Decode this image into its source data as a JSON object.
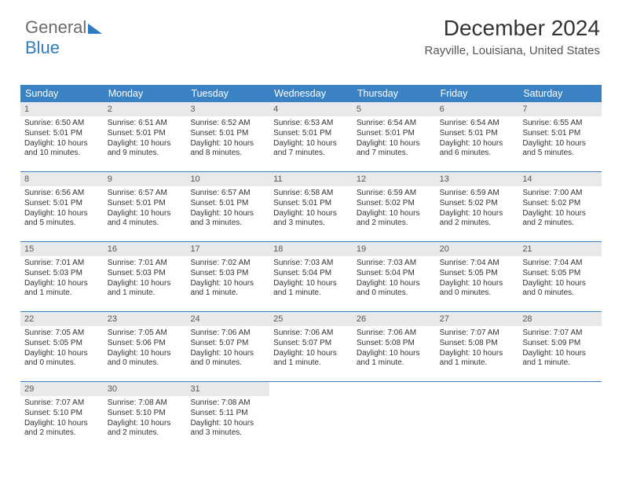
{
  "logo": {
    "part1": "General",
    "part2": "Blue"
  },
  "header": {
    "month_year": "December 2024",
    "location": "Rayville, Louisiana, United States"
  },
  "colors": {
    "header_bar": "#3a82c4",
    "week_divider": "#3a82c4",
    "daynum_bg": "#e7e9eb",
    "text": "#333333",
    "background": "#ffffff",
    "logo_accent": "#2f7bbf"
  },
  "day_names": [
    "Sunday",
    "Monday",
    "Tuesday",
    "Wednesday",
    "Thursday",
    "Friday",
    "Saturday"
  ],
  "weeks": [
    [
      {
        "n": "1",
        "sr": "6:50 AM",
        "ss": "5:01 PM",
        "dl": "10 hours and 10 minutes."
      },
      {
        "n": "2",
        "sr": "6:51 AM",
        "ss": "5:01 PM",
        "dl": "10 hours and 9 minutes."
      },
      {
        "n": "3",
        "sr": "6:52 AM",
        "ss": "5:01 PM",
        "dl": "10 hours and 8 minutes."
      },
      {
        "n": "4",
        "sr": "6:53 AM",
        "ss": "5:01 PM",
        "dl": "10 hours and 7 minutes."
      },
      {
        "n": "5",
        "sr": "6:54 AM",
        "ss": "5:01 PM",
        "dl": "10 hours and 7 minutes."
      },
      {
        "n": "6",
        "sr": "6:54 AM",
        "ss": "5:01 PM",
        "dl": "10 hours and 6 minutes."
      },
      {
        "n": "7",
        "sr": "6:55 AM",
        "ss": "5:01 PM",
        "dl": "10 hours and 5 minutes."
      }
    ],
    [
      {
        "n": "8",
        "sr": "6:56 AM",
        "ss": "5:01 PM",
        "dl": "10 hours and 5 minutes."
      },
      {
        "n": "9",
        "sr": "6:57 AM",
        "ss": "5:01 PM",
        "dl": "10 hours and 4 minutes."
      },
      {
        "n": "10",
        "sr": "6:57 AM",
        "ss": "5:01 PM",
        "dl": "10 hours and 3 minutes."
      },
      {
        "n": "11",
        "sr": "6:58 AM",
        "ss": "5:01 PM",
        "dl": "10 hours and 3 minutes."
      },
      {
        "n": "12",
        "sr": "6:59 AM",
        "ss": "5:02 PM",
        "dl": "10 hours and 2 minutes."
      },
      {
        "n": "13",
        "sr": "6:59 AM",
        "ss": "5:02 PM",
        "dl": "10 hours and 2 minutes."
      },
      {
        "n": "14",
        "sr": "7:00 AM",
        "ss": "5:02 PM",
        "dl": "10 hours and 2 minutes."
      }
    ],
    [
      {
        "n": "15",
        "sr": "7:01 AM",
        "ss": "5:03 PM",
        "dl": "10 hours and 1 minute."
      },
      {
        "n": "16",
        "sr": "7:01 AM",
        "ss": "5:03 PM",
        "dl": "10 hours and 1 minute."
      },
      {
        "n": "17",
        "sr": "7:02 AM",
        "ss": "5:03 PM",
        "dl": "10 hours and 1 minute."
      },
      {
        "n": "18",
        "sr": "7:03 AM",
        "ss": "5:04 PM",
        "dl": "10 hours and 1 minute."
      },
      {
        "n": "19",
        "sr": "7:03 AM",
        "ss": "5:04 PM",
        "dl": "10 hours and 0 minutes."
      },
      {
        "n": "20",
        "sr": "7:04 AM",
        "ss": "5:05 PM",
        "dl": "10 hours and 0 minutes."
      },
      {
        "n": "21",
        "sr": "7:04 AM",
        "ss": "5:05 PM",
        "dl": "10 hours and 0 minutes."
      }
    ],
    [
      {
        "n": "22",
        "sr": "7:05 AM",
        "ss": "5:05 PM",
        "dl": "10 hours and 0 minutes."
      },
      {
        "n": "23",
        "sr": "7:05 AM",
        "ss": "5:06 PM",
        "dl": "10 hours and 0 minutes."
      },
      {
        "n": "24",
        "sr": "7:06 AM",
        "ss": "5:07 PM",
        "dl": "10 hours and 0 minutes."
      },
      {
        "n": "25",
        "sr": "7:06 AM",
        "ss": "5:07 PM",
        "dl": "10 hours and 1 minute."
      },
      {
        "n": "26",
        "sr": "7:06 AM",
        "ss": "5:08 PM",
        "dl": "10 hours and 1 minute."
      },
      {
        "n": "27",
        "sr": "7:07 AM",
        "ss": "5:08 PM",
        "dl": "10 hours and 1 minute."
      },
      {
        "n": "28",
        "sr": "7:07 AM",
        "ss": "5:09 PM",
        "dl": "10 hours and 1 minute."
      }
    ],
    [
      {
        "n": "29",
        "sr": "7:07 AM",
        "ss": "5:10 PM",
        "dl": "10 hours and 2 minutes."
      },
      {
        "n": "30",
        "sr": "7:08 AM",
        "ss": "5:10 PM",
        "dl": "10 hours and 2 minutes."
      },
      {
        "n": "31",
        "sr": "7:08 AM",
        "ss": "5:11 PM",
        "dl": "10 hours and 3 minutes."
      },
      null,
      null,
      null,
      null
    ]
  ],
  "labels": {
    "sunrise": "Sunrise:",
    "sunset": "Sunset:",
    "daylight": "Daylight:"
  }
}
